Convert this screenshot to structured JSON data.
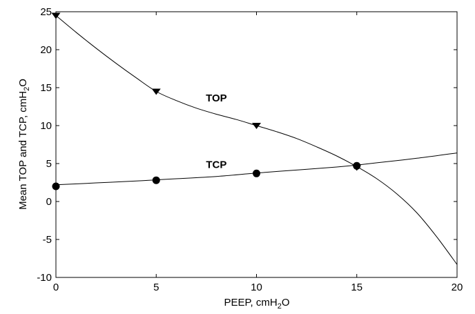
{
  "chart_data": {
    "type": "line",
    "title": "",
    "xlabel": {
      "main": "PEEP, cmH",
      "sub": "2",
      "tail": "O"
    },
    "ylabel": {
      "main": "Mean TOP and TCP, cmH",
      "sub": "2",
      "tail": "O"
    },
    "xlim": [
      0,
      20
    ],
    "ylim": [
      -10,
      25
    ],
    "xticks": [
      0,
      5,
      10,
      15,
      20
    ],
    "yticks": [
      -10,
      -5,
      0,
      5,
      10,
      15,
      20,
      25
    ],
    "grid": false,
    "series": [
      {
        "name": "TOP",
        "marker": "triangle-down",
        "points": [
          [
            0,
            24.5
          ],
          [
            5,
            14.5
          ],
          [
            10,
            10
          ],
          [
            15,
            4.5
          ]
        ],
        "curve": [
          [
            0,
            24.5
          ],
          [
            1,
            22.3
          ],
          [
            2,
            20.2
          ],
          [
            3,
            18.2
          ],
          [
            4,
            16.3
          ],
          [
            5,
            14.5
          ],
          [
            6,
            13.3
          ],
          [
            7,
            12.3
          ],
          [
            8,
            11.5
          ],
          [
            9,
            10.8
          ],
          [
            10,
            10.0
          ],
          [
            11,
            9.2
          ],
          [
            12,
            8.3
          ],
          [
            13,
            7.2
          ],
          [
            14,
            6.0
          ],
          [
            15,
            4.6
          ],
          [
            16,
            3.0
          ],
          [
            17,
            1.0
          ],
          [
            18,
            -1.5
          ],
          [
            19,
            -4.7
          ],
          [
            20,
            -8.3
          ]
        ]
      },
      {
        "name": "TCP",
        "marker": "circle",
        "points": [
          [
            0,
            2
          ],
          [
            5,
            2.8
          ],
          [
            10,
            3.7
          ],
          [
            15,
            4.7
          ]
        ],
        "curve": [
          [
            0,
            2.2
          ],
          [
            2,
            2.45
          ],
          [
            4,
            2.7
          ],
          [
            5,
            2.85
          ],
          [
            6,
            3.0
          ],
          [
            8,
            3.3
          ],
          [
            10,
            3.75
          ],
          [
            12,
            4.15
          ],
          [
            14,
            4.55
          ],
          [
            15,
            4.8
          ],
          [
            16,
            5.1
          ],
          [
            18,
            5.7
          ],
          [
            20,
            6.4
          ]
        ]
      }
    ]
  }
}
